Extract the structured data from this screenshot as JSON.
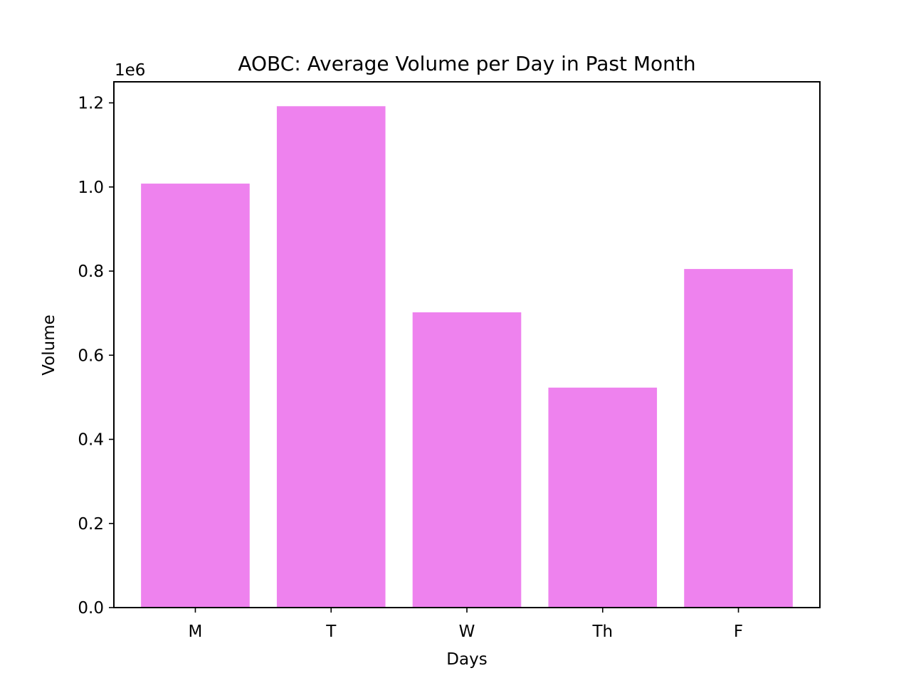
{
  "chart_data": {
    "type": "bar",
    "title": "AOBC: Average Volume per Day in Past Month",
    "xlabel": "Days",
    "ylabel": "Volume",
    "categories": [
      "M",
      "T",
      "W",
      "Th",
      "F"
    ],
    "values": [
      1008000,
      1192000,
      702000,
      523000,
      805000
    ],
    "ylim": [
      0,
      1250000
    ],
    "yticks": [
      0,
      200000,
      400000,
      600000,
      800000,
      1000000,
      1200000
    ],
    "ytick_labels": [
      "0.0",
      "0.2",
      "0.4",
      "0.6",
      "0.8",
      "1.0",
      "1.2"
    ],
    "y_offset_label": "1e6",
    "bar_color": "#ee82ee",
    "grid": false,
    "legend": "none"
  }
}
